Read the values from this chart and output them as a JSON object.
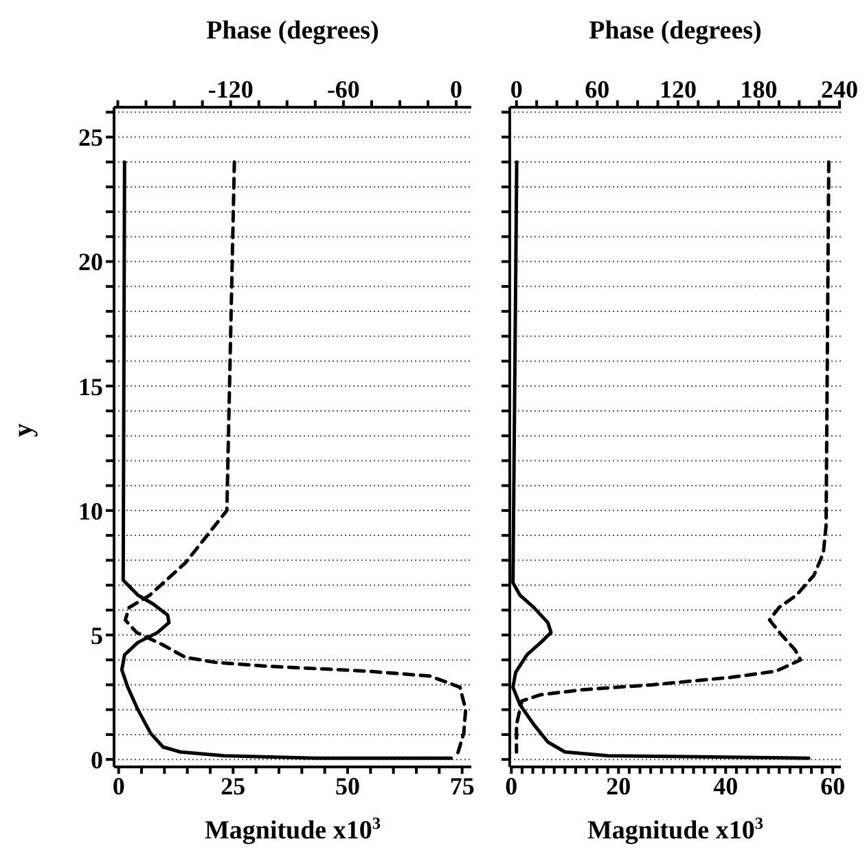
{
  "chart_data": [
    {
      "type": "line",
      "ylabel": "y",
      "xlabel": "Magnitude x10$^{3}$",
      "x2label": "Phase (degrees)",
      "grid": "y",
      "xlim": [
        -1,
        77
      ],
      "x2lim": [
        -182,
        8
      ],
      "ylim": [
        -0.3,
        26.2
      ],
      "xticks": [
        0,
        {
          "value": 5,
          "label": null
        },
        {
          "value": 10,
          "label": null
        },
        {
          "value": 15,
          "label": null
        },
        {
          "value": 20,
          "label": null
        },
        25,
        {
          "value": 30,
          "label": null
        },
        {
          "value": 35,
          "label": null
        },
        {
          "value": 40,
          "label": null
        },
        {
          "value": 45,
          "label": null
        },
        50,
        {
          "value": 55,
          "label": null
        },
        {
          "value": 60,
          "label": null
        },
        {
          "value": 65,
          "label": null
        },
        {
          "value": 70,
          "label": null
        },
        75
      ],
      "x2ticks": [
        {
          "value": -180,
          "label": null
        },
        {
          "value": -165,
          "label": null
        },
        {
          "value": -150,
          "label": null
        },
        {
          "value": -135,
          "label": null
        },
        -120,
        {
          "value": -105,
          "label": null
        },
        {
          "value": -90,
          "label": null
        },
        {
          "value": -75,
          "label": null
        },
        -60,
        {
          "value": -45,
          "label": null
        },
        {
          "value": -30,
          "label": null
        },
        {
          "value": -15,
          "label": null
        },
        0
      ],
      "yticks": [
        0,
        {
          "value": 1,
          "label": null
        },
        {
          "value": 2,
          "label": null
        },
        {
          "value": 3,
          "label": null
        },
        {
          "value": 4,
          "label": null
        },
        5,
        {
          "value": 6,
          "label": null
        },
        {
          "value": 7,
          "label": null
        },
        {
          "value": 8,
          "label": null
        },
        {
          "value": 9,
          "label": null
        },
        10,
        {
          "value": 11,
          "label": null
        },
        {
          "value": 12,
          "label": null
        },
        {
          "value": 13,
          "label": null
        },
        {
          "value": 14,
          "label": null
        },
        15,
        {
          "value": 16,
          "label": null
        },
        {
          "value": 17,
          "label": null
        },
        {
          "value": 18,
          "label": null
        },
        {
          "value": 19,
          "label": null
        },
        20,
        {
          "value": 21,
          "label": null
        },
        {
          "value": 22,
          "label": null
        },
        {
          "value": 23,
          "label": null
        },
        {
          "value": 24,
          "label": null
        },
        25,
        {
          "value": 26,
          "label": null
        }
      ],
      "series": [
        {
          "color": "#000000",
          "line_style": "solid",
          "x": [
            1.3,
            1,
            4.2,
            7.5,
            10.7,
            11,
            8.5,
            4.2,
            1.3,
            0.7,
            2,
            4.2,
            7,
            9.7,
            13.5,
            23,
            43,
            72.6
          ],
          "values": [
            24,
            7.2,
            6.6,
            6.25,
            5.8,
            5.5,
            5.1,
            4.7,
            4.2,
            3.6,
            2.9,
            2,
            1.05,
            0.5,
            0.3,
            0.15,
            0.05,
            0.05
          ]
        },
        {
          "color": "#000000",
          "line_style": "dashed",
          "axis": "x2",
          "x": [
            -118,
            -122,
            -144,
            -163,
            -174,
            -176,
            -170,
            -156,
            -144,
            -128,
            -102,
            -48,
            -14,
            2,
            5,
            4,
            1,
            0
          ],
          "values": [
            24,
            10,
            7.9,
            6.6,
            6.1,
            5.6,
            5.1,
            4.6,
            4.1,
            3.9,
            3.75,
            3.55,
            3.35,
            2.9,
            2,
            1.05,
            0.3,
            0.1
          ]
        }
      ]
    },
    {
      "type": "line",
      "tick_labels": "x",
      "xlabel": "Magnitude x10$^{3}$",
      "x2label": "Phase (degrees)",
      "grid": "y",
      "xlim": [
        -0.3,
        61.5
      ],
      "x2lim": [
        -5,
        241
      ],
      "ylim": [
        -0.3,
        26.2
      ],
      "xticks": [
        0,
        {
          "value": 2,
          "label": null
        },
        {
          "value": 4,
          "label": null
        },
        {
          "value": 6,
          "label": null
        },
        {
          "value": 8,
          "label": null
        },
        {
          "value": 10,
          "label": null
        },
        {
          "value": 12,
          "label": null
        },
        {
          "value": 14,
          "label": null
        },
        {
          "value": 16,
          "label": null
        },
        {
          "value": 18,
          "label": null
        },
        20,
        {
          "value": 22,
          "label": null
        },
        {
          "value": 24,
          "label": null
        },
        {
          "value": 26,
          "label": null
        },
        {
          "value": 28,
          "label": null
        },
        {
          "value": 30,
          "label": null
        },
        {
          "value": 32,
          "label": null
        },
        {
          "value": 34,
          "label": null
        },
        {
          "value": 36,
          "label": null
        },
        {
          "value": 38,
          "label": null
        },
        40,
        {
          "value": 42,
          "label": null
        },
        {
          "value": 44,
          "label": null
        },
        {
          "value": 46,
          "label": null
        },
        {
          "value": 48,
          "label": null
        },
        {
          "value": 50,
          "label": null
        },
        {
          "value": 52,
          "label": null
        },
        {
          "value": 54,
          "label": null
        },
        {
          "value": 56,
          "label": null
        },
        {
          "value": 58,
          "label": null
        },
        60
      ],
      "x2ticks": [
        0,
        {
          "value": 15,
          "label": null
        },
        {
          "value": 30,
          "label": null
        },
        {
          "value": 45,
          "label": null
        },
        60,
        {
          "value": 75,
          "label": null
        },
        {
          "value": 90,
          "label": null
        },
        {
          "value": 105,
          "label": null
        },
        120,
        {
          "value": 135,
          "label": null
        },
        {
          "value": 150,
          "label": null
        },
        {
          "value": 165,
          "label": null
        },
        180,
        {
          "value": 195,
          "label": null
        },
        {
          "value": 210,
          "label": null
        },
        {
          "value": 225,
          "label": null
        },
        240
      ],
      "yticks": [
        0,
        {
          "value": 1,
          "label": null
        },
        {
          "value": 2,
          "label": null
        },
        {
          "value": 3,
          "label": null
        },
        {
          "value": 4,
          "label": null
        },
        5,
        {
          "value": 6,
          "label": null
        },
        {
          "value": 7,
          "label": null
        },
        {
          "value": 8,
          "label": null
        },
        {
          "value": 9,
          "label": null
        },
        10,
        {
          "value": 11,
          "label": null
        },
        {
          "value": 12,
          "label": null
        },
        {
          "value": 13,
          "label": null
        },
        {
          "value": 14,
          "label": null
        },
        15,
        {
          "value": 16,
          "label": null
        },
        {
          "value": 17,
          "label": null
        },
        {
          "value": 18,
          "label": null
        },
        {
          "value": 19,
          "label": null
        },
        20,
        {
          "value": 21,
          "label": null
        },
        {
          "value": 22,
          "label": null
        },
        {
          "value": 23,
          "label": null
        },
        {
          "value": 24,
          "label": null
        },
        25,
        {
          "value": 26,
          "label": null
        }
      ],
      "series": [
        {
          "color": "#000000",
          "line_style": "solid",
          "x": [
            1,
            0.3,
            1.6,
            4.2,
            6.8,
            7.4,
            5.5,
            2.9,
            0.8,
            0.3,
            1.6,
            4.2,
            6.8,
            10,
            18,
            55.5
          ],
          "values": [
            24,
            7.1,
            6.6,
            6.1,
            5.5,
            5.1,
            4.7,
            4.2,
            3.5,
            2.9,
            2.2,
            1.4,
            0.7,
            0.3,
            0.15,
            0.05
          ]
        },
        {
          "color": "#000000",
          "line_style": "dashed",
          "axis": "x2",
          "x": [
            232,
            230,
            228,
            221,
            208,
            195,
            188,
            197,
            207,
            211,
            193,
            160,
            101,
            49,
            18,
            4,
            0,
            0
          ],
          "values": [
            24,
            9.4,
            8.3,
            7.4,
            6.6,
            6.1,
            5.6,
            5,
            4.4,
            4,
            3.55,
            3.3,
            3,
            2.8,
            2.6,
            2.35,
            1.4,
            0.3
          ]
        }
      ]
    }
  ]
}
